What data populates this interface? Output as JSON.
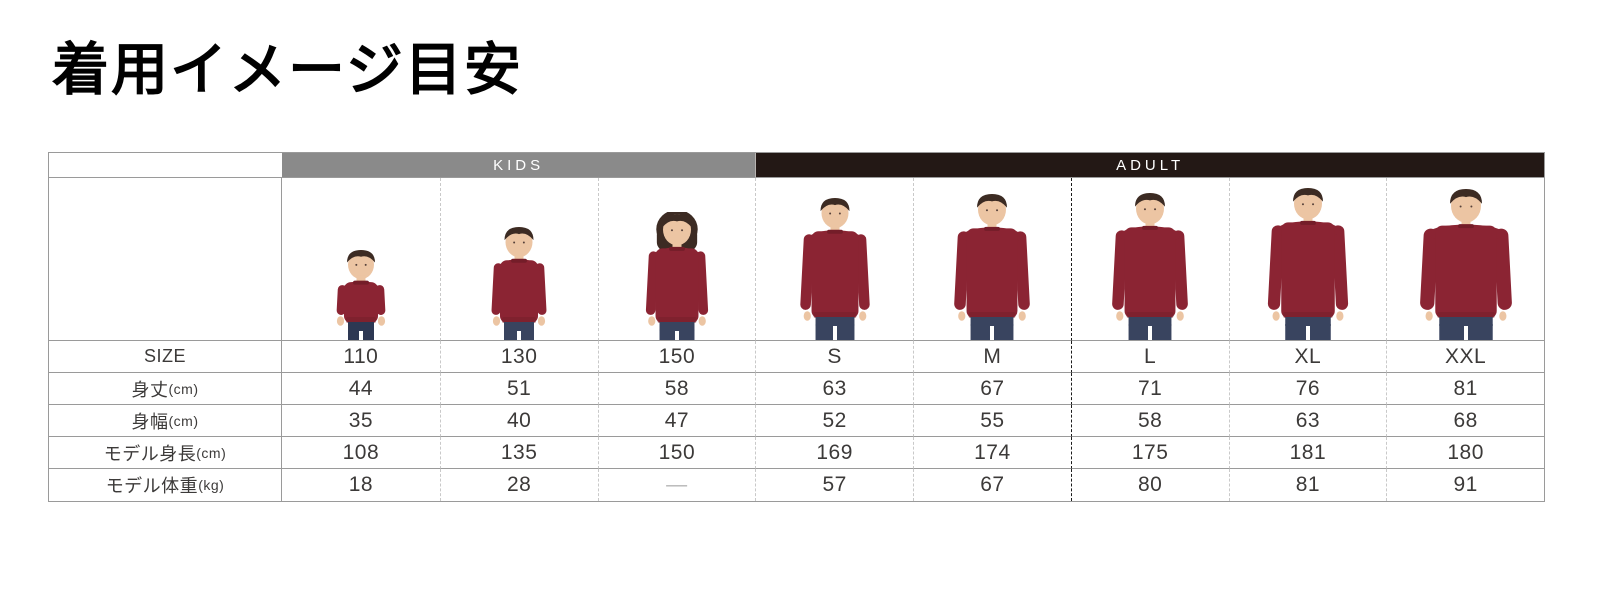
{
  "title": "着用イメージ目安",
  "size_chart": {
    "groups": [
      {
        "label": "KIDS",
        "span": 3,
        "bg": "#8a8a8a"
      },
      {
        "label": "ADULT",
        "span": 5,
        "bg": "#231815"
      }
    ],
    "rows": [
      {
        "label": "SIZE",
        "values": [
          "110",
          "130",
          "150",
          "S",
          "M",
          "L",
          "XL",
          "XXL"
        ]
      },
      {
        "label": "身丈(cm)",
        "values": [
          "44",
          "51",
          "58",
          "63",
          "67",
          "71",
          "76",
          "81"
        ]
      },
      {
        "label": "身幅(cm)",
        "values": [
          "35",
          "40",
          "47",
          "52",
          "55",
          "58",
          "63",
          "68"
        ]
      },
      {
        "label": "モデル身長(cm)",
        "values": [
          "108",
          "135",
          "150",
          "169",
          "174",
          "175",
          "181",
          "180"
        ]
      },
      {
        "label": "モデル体重(kg)",
        "values": [
          "18",
          "28",
          "—",
          "57",
          "67",
          "80",
          "81",
          "91"
        ]
      }
    ],
    "models": [
      {
        "size": "110",
        "person": "toddler-boy-in-burgundy-sweatshirt"
      },
      {
        "size": "130",
        "person": "boy-in-burgundy-sweatshirt"
      },
      {
        "size": "150",
        "person": "girl-in-burgundy-sweatshirt"
      },
      {
        "size": "S",
        "person": "man-in-burgundy-sweatshirt"
      },
      {
        "size": "M",
        "person": "man-in-burgundy-sweatshirt"
      },
      {
        "size": "L",
        "person": "man-in-burgundy-sweatshirt"
      },
      {
        "size": "XL",
        "person": "man-in-burgundy-sweatshirt"
      },
      {
        "size": "XXL",
        "person": "man-in-burgundy-sweatshirt"
      }
    ]
  },
  "colors": {
    "kids_header_bg": "#8a8a8a",
    "adult_header_bg": "#231815",
    "header_text": "#ffffff",
    "table_border": "#9a9a9a",
    "column_dash": "#c9c9c9",
    "column_dash_bold": "#1c1c1c",
    "body_text": "#3c3a39",
    "muted_dash": "#b5b5b5",
    "sweatshirt": "#8b2433",
    "sweatshirt_dark": "#741d29",
    "skin": "#ecc5a3",
    "hair": "#3c2b23",
    "denim": "#39445f"
  }
}
